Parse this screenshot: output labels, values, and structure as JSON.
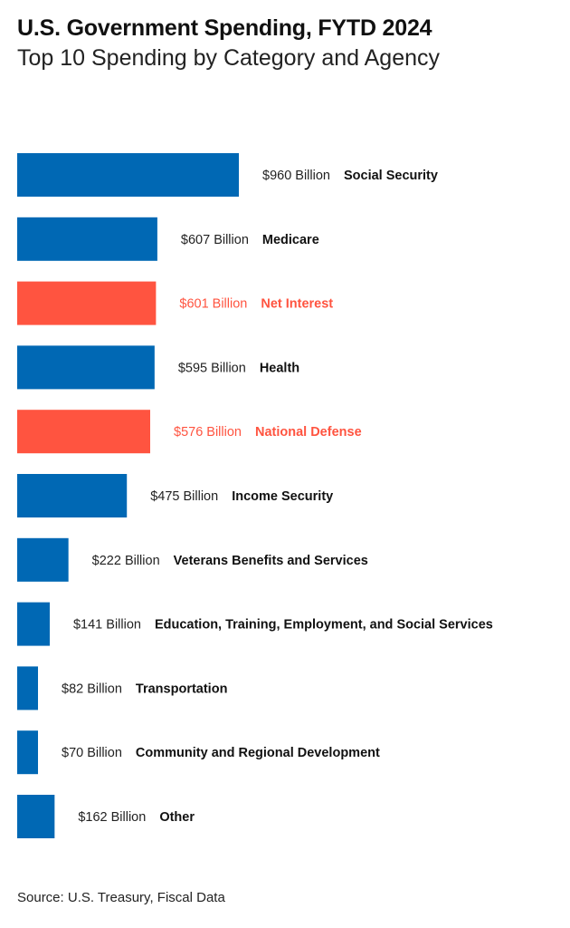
{
  "chart_data": {
    "type": "bar",
    "orientation": "horizontal",
    "title": "U.S. Government Spending, FYTD 2024",
    "subtitle": "Top 10 Spending by Category and Agency",
    "source": "Source: U.S. Treasury, Fiscal Data",
    "unit": "Billion USD",
    "grid": false,
    "colors": {
      "default": "#0068B4",
      "highlight": "#FF5440",
      "text": "#111111"
    },
    "categories": [
      "Social Security",
      "Medicare",
      "Net Interest",
      "Health",
      "National Defense",
      "Income Security",
      "Veterans Benefits and Services",
      "Education, Training, Employment, and Social Services",
      "Transportation",
      "Community and Regional Development",
      "Other"
    ],
    "values": [
      960,
      607,
      601,
      595,
      576,
      475,
      222,
      141,
      82,
      70,
      162
    ],
    "value_labels": [
      "$960 Billion",
      "$607 Billion",
      "$601 Billion",
      "$595 Billion",
      "$576 Billion",
      "$475 Billion",
      "$222 Billion",
      "$141 Billion",
      "$82 Billion",
      "$70 Billion",
      "$162 Billion"
    ],
    "highlighted": [
      "Net Interest",
      "National Defense"
    ]
  }
}
